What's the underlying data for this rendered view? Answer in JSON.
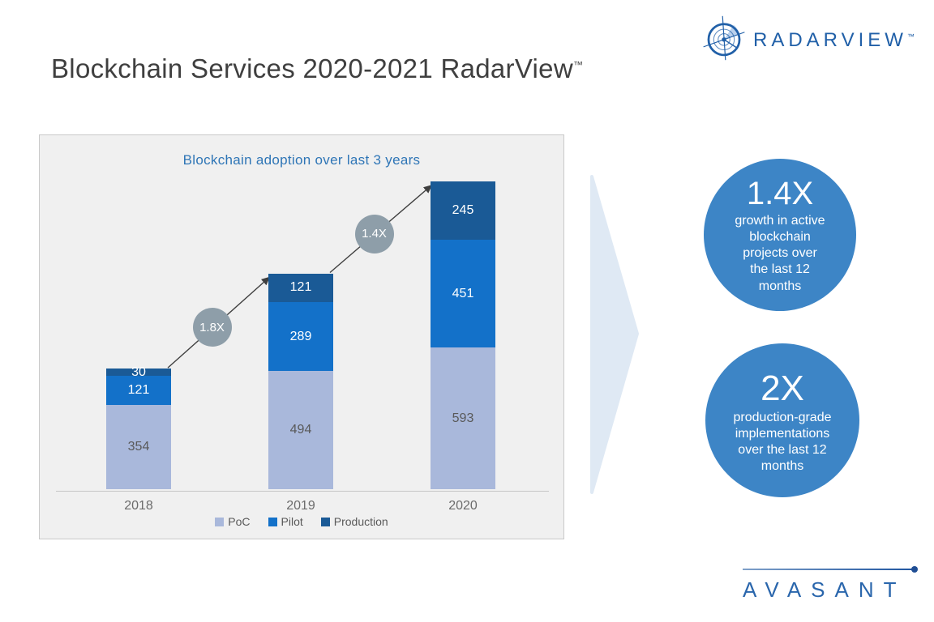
{
  "header": {
    "title": "Blockchain Services 2020-2021 RadarView",
    "trademark": "™",
    "logo": {
      "text": "RADARVIEW",
      "trademark": "™"
    }
  },
  "chart_data": {
    "type": "bar",
    "stacked": true,
    "title": "Blockchain adoption over last 3 years",
    "categories": [
      "2018",
      "2019",
      "2020"
    ],
    "series": [
      {
        "name": "PoC",
        "color": "#A9B8DB",
        "label_color": "#595959",
        "values": [
          354,
          494,
          593
        ]
      },
      {
        "name": "Pilot",
        "color": "#1371C9",
        "label_color": "#FFFFFF",
        "values": [
          121,
          289,
          451
        ]
      },
      {
        "name": "Production",
        "color": "#1A5A96",
        "label_color": "#FFFFFF",
        "values": [
          30,
          121,
          245
        ]
      }
    ],
    "totals": [
      505,
      904,
      1289
    ],
    "growth_annotations": [
      {
        "label": "1.8X",
        "from": "2018",
        "to": "2019"
      },
      {
        "label": "1.4X",
        "from": "2019",
        "to": "2020"
      }
    ],
    "legend_position": "bottom",
    "ylim": [
      0,
      1300
    ],
    "grid": false
  },
  "highlights": [
    {
      "value": "1.4X",
      "text": "growth in active blockchain projects over the last 12 months"
    },
    {
      "value": "2X",
      "text": "production-grade implementations over the last 12 months"
    }
  ],
  "footer": {
    "logo_text": "AVASANT"
  },
  "colors": {
    "chart_title": "#2E75B6",
    "badge_gray": "#8E9EA9",
    "highlight_circle": "#3D85C6",
    "chevron": "#DFE9F4",
    "logo_blue": "#2160A8",
    "avasant_blue": "#2A66AC"
  }
}
